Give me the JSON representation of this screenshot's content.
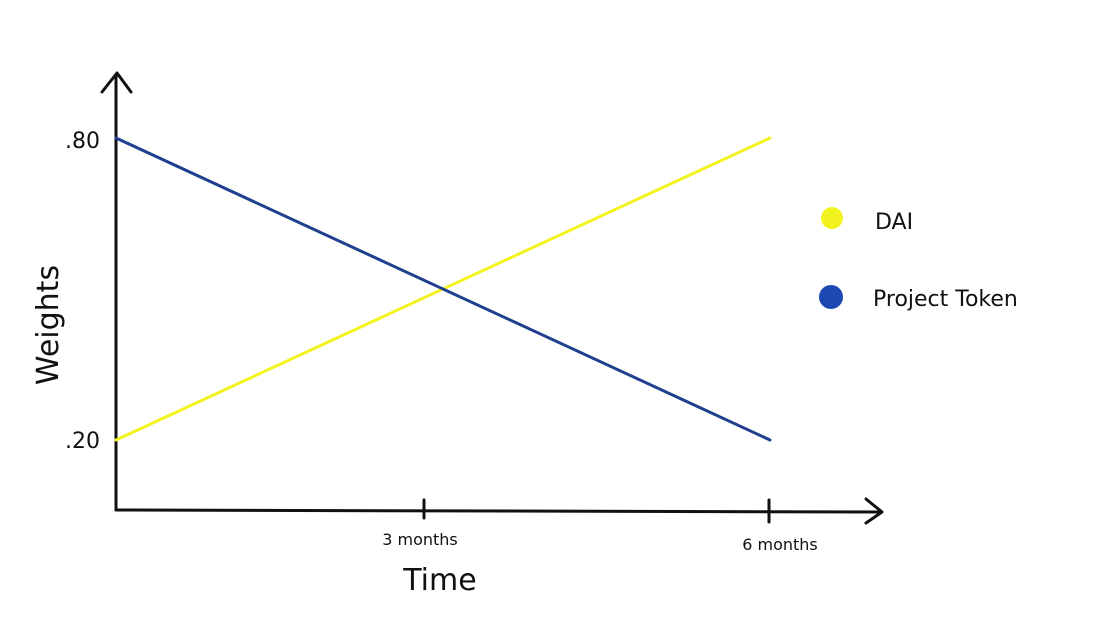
{
  "chart_data": {
    "type": "line",
    "title": "",
    "xlabel": "Time",
    "ylabel": "Weights",
    "x_ticks": [
      "3 months",
      "6 months"
    ],
    "y_ticks": [
      ".20",
      ".80"
    ],
    "x": [
      "0",
      "3 months",
      "6 months"
    ],
    "series": [
      {
        "name": "DAI",
        "values": [
          0.2,
          0.5,
          0.8
        ],
        "color": "#f3f31f"
      },
      {
        "name": "Project Token",
        "values": [
          0.8,
          0.5,
          0.2
        ],
        "color": "#1f3f8f"
      }
    ],
    "legend_position": "right",
    "grid": false
  }
}
